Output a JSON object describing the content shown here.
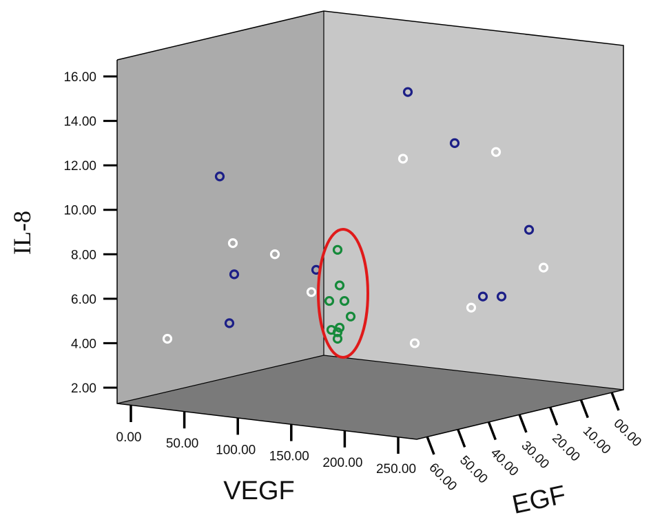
{
  "chart_data": {
    "type": "scatter",
    "projection": "3d",
    "xlabel": "VEGF",
    "ylabel": "IL-8",
    "zlabel": "EGF",
    "x_ticks": [
      "0.00",
      "50.00",
      "100.00",
      "150.00",
      "200.00",
      "250.00"
    ],
    "y_ticks": [
      "2.00",
      "4.00",
      "6.00",
      "8.00",
      "10.00",
      "12.00",
      "14.00",
      "16.00"
    ],
    "z_ticks": [
      "00.00",
      "10.00",
      "20.00",
      "30.00",
      "40.00",
      "50.00",
      "60.00"
    ],
    "ylim": [
      2,
      16
    ],
    "grid": false,
    "colors": {
      "left_wall": "#ababab",
      "back_wall": "#c7c7c7",
      "floor": "#7a7a7a",
      "blue_series": "#1c1f87",
      "white_series": "#ffffff",
      "green_series": "#158a3a",
      "highlight_ellipse": "#e01a1a"
    },
    "series": [
      {
        "color": "#1c1f87",
        "points": [
          {
            "y": 11.5
          },
          {
            "y": 7.1
          },
          {
            "y": 4.9
          },
          {
            "y": 7.3
          },
          {
            "y": 15.3
          },
          {
            "y": 13.0
          },
          {
            "y": 9.1
          },
          {
            "y": 6.1
          },
          {
            "y": 6.1
          }
        ]
      },
      {
        "color": "#ffffff",
        "points": [
          {
            "y": 4.2
          },
          {
            "y": 8.5
          },
          {
            "y": 8.0
          },
          {
            "y": 6.3
          },
          {
            "y": 12.3
          },
          {
            "y": 12.6
          },
          {
            "y": 7.4
          },
          {
            "y": 5.6
          },
          {
            "y": 4.0
          }
        ]
      },
      {
        "color": "#158a3a",
        "points": [
          {
            "y": 8.2
          },
          {
            "y": 6.6
          },
          {
            "y": 5.9
          },
          {
            "y": 5.9
          },
          {
            "y": 5.2
          },
          {
            "y": 4.7
          },
          {
            "y": 4.6
          },
          {
            "y": 4.4
          },
          {
            "y": 4.2
          }
        ]
      }
    ],
    "annotations": [
      {
        "type": "ellipse",
        "color": "#e01a1a",
        "encloses": "green series"
      }
    ]
  }
}
